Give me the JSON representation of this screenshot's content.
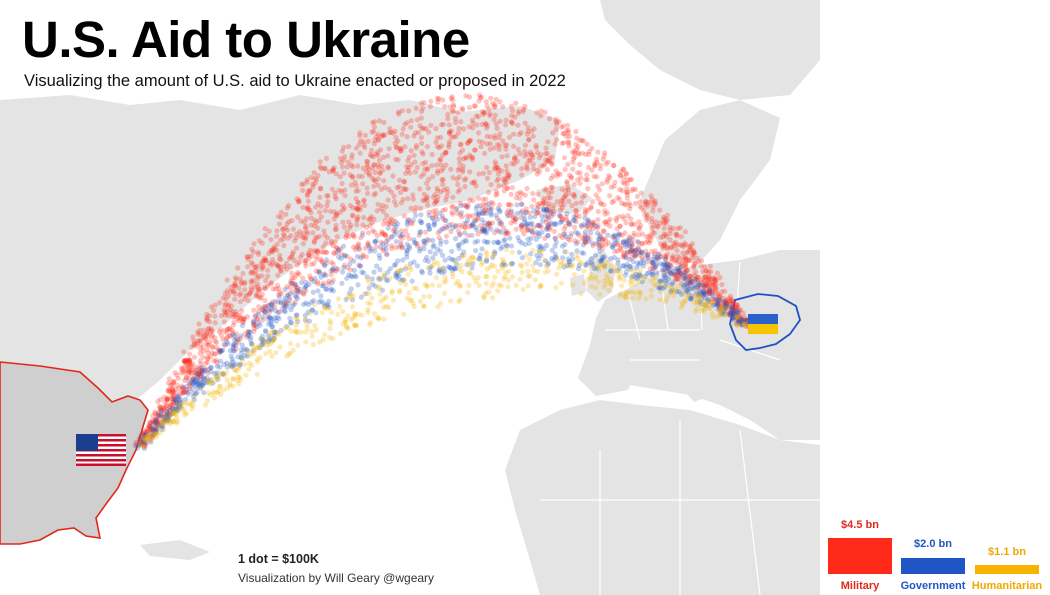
{
  "header": {
    "title": "U.S. Aid to Ukraine",
    "subtitle": "Visualizing the amount of U.S. aid to Ukraine enacted or proposed in 2022"
  },
  "footer": {
    "scale_note": "1 dot = $100K",
    "credit": "Visualization by Will Geary @wgeary"
  },
  "chart_data": {
    "type": "scatter",
    "title": "U.S. Aid to Ukraine",
    "subtitle": "Visualizing the amount of U.S. aid to Ukraine enacted or proposed in 2022",
    "origin": "U.S.",
    "destination": "Ukraine",
    "unit_per_dot": "$100K",
    "series": [
      {
        "name": "Military",
        "label": "$4.5 bn",
        "value_bn": 4.5,
        "dots": 45000,
        "color": "#ff2a1a"
      },
      {
        "name": "Government",
        "label": "$2.0 bn",
        "value_bn": 2.0,
        "dots": 20000,
        "color": "#1f55c4"
      },
      {
        "name": "Humanitarian",
        "label": "$1.1 bn",
        "value_bn": 1.1,
        "dots": 11000,
        "color": "#f6b400"
      }
    ]
  },
  "colors": {
    "land": "#e4e4e4",
    "usa_land": "#cfcfcf",
    "usa_outline": "#e0281b",
    "ukraine_outline": "#1f4fc4",
    "border": "#ffffff",
    "ocean": "#ffffff"
  },
  "icons": [
    "us-flag-icon",
    "ukraine-flag-icon"
  ]
}
